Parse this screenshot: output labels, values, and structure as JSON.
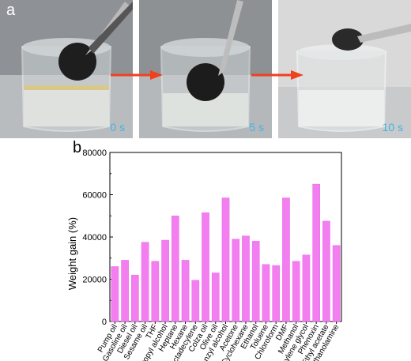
{
  "panel_a": {
    "label": "a",
    "frames": [
      {
        "time": "0 s"
      },
      {
        "time": "5 s"
      },
      {
        "time": "10 s"
      }
    ]
  },
  "panel_b": {
    "label": "b"
  },
  "colors": {
    "bar": "#f27ef0",
    "bar_edge": "#e86be6",
    "arrow": "#f0401e",
    "time_label": "#3fb4e6"
  },
  "chart_data": {
    "type": "bar",
    "categories": [
      "Pump oil",
      "Gasoline oil",
      "Diesel oil",
      "Sesame oil",
      "THF",
      "Isopropyl alcohol",
      "Heptane",
      "Hexane",
      "Octadecylene",
      "Colza oil",
      "Olive oil",
      "Benzyl alcohol",
      "Acetone",
      "Cyclohexane",
      "Ethanol",
      "Toluene",
      "Chloroform",
      "DMF",
      "Methanol",
      "Ethylene glycol",
      "Phenoxin",
      "Ethyl acetate",
      "Ethanolamine"
    ],
    "values": [
      26000,
      29000,
      22000,
      37500,
      28500,
      38500,
      50000,
      29000,
      19500,
      51500,
      23000,
      58500,
      39000,
      40500,
      38000,
      27000,
      26500,
      58500,
      28500,
      31500,
      65000,
      47500,
      36000
    ],
    "ylabel": "Weight gain (%)",
    "ylim": [
      0,
      80000
    ],
    "yticks": [
      "0",
      "20000",
      "40000",
      "60000",
      "80000"
    ],
    "grid": false
  }
}
